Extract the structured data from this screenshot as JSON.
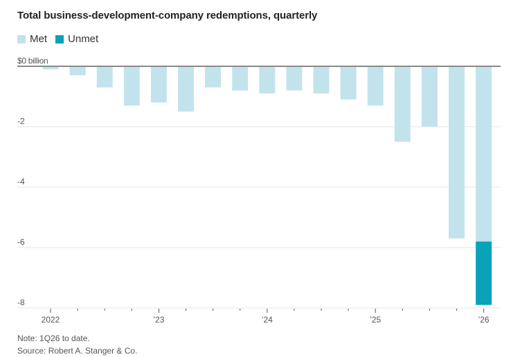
{
  "chart_data": {
    "type": "bar",
    "stacked": true,
    "title": "Total business-development-company redemptions, quarterly",
    "xlabel": "",
    "ylabel": "",
    "y_unit_label": "$0 billion",
    "ylim": [
      -8,
      0
    ],
    "yticks": [
      0,
      -2,
      -4,
      -6,
      -8
    ],
    "ytick_labels": [
      "$0 billion",
      "-2",
      "-4",
      "-6",
      "-8"
    ],
    "grid": true,
    "legend_position": "top-left",
    "categories": [
      "1Q22",
      "2Q22",
      "3Q22",
      "4Q22",
      "1Q23",
      "2Q23",
      "3Q23",
      "4Q23",
      "1Q24",
      "2Q24",
      "3Q24",
      "4Q24",
      "1Q25",
      "2Q25",
      "3Q25",
      "4Q25",
      "1Q26"
    ],
    "xtick_labels": [
      {
        "index": 0,
        "label": "2022"
      },
      {
        "index": 4,
        "label": "’23"
      },
      {
        "index": 8,
        "label": "’24"
      },
      {
        "index": 12,
        "label": "’25"
      },
      {
        "index": 16,
        "label": "’26"
      }
    ],
    "series": [
      {
        "name": "Met",
        "color": "#c3e3ec",
        "values": [
          -0.1,
          -0.3,
          -0.7,
          -1.3,
          -1.2,
          -1.5,
          -0.7,
          -0.8,
          -0.9,
          -0.8,
          -0.9,
          -1.1,
          -1.3,
          -2.5,
          -2.0,
          -5.7,
          -5.8
        ]
      },
      {
        "name": "Unmet",
        "color": "#0aa2b8",
        "values": [
          0,
          0,
          0,
          0,
          0,
          0,
          0,
          0,
          0,
          0,
          0,
          0,
          0,
          0,
          0,
          0,
          -2.1
        ]
      }
    ]
  },
  "legend": {
    "items": [
      {
        "label": "Met",
        "color": "#c3e3ec"
      },
      {
        "label": "Unmet",
        "color": "#0aa2b8"
      }
    ]
  },
  "footer": {
    "note": "Note: 1Q26 to date.",
    "source": "Source: Robert A. Stanger & Co."
  },
  "colors": {
    "zero_line": "#888888",
    "gridline": "#eeeeee",
    "tick": "#555555"
  }
}
